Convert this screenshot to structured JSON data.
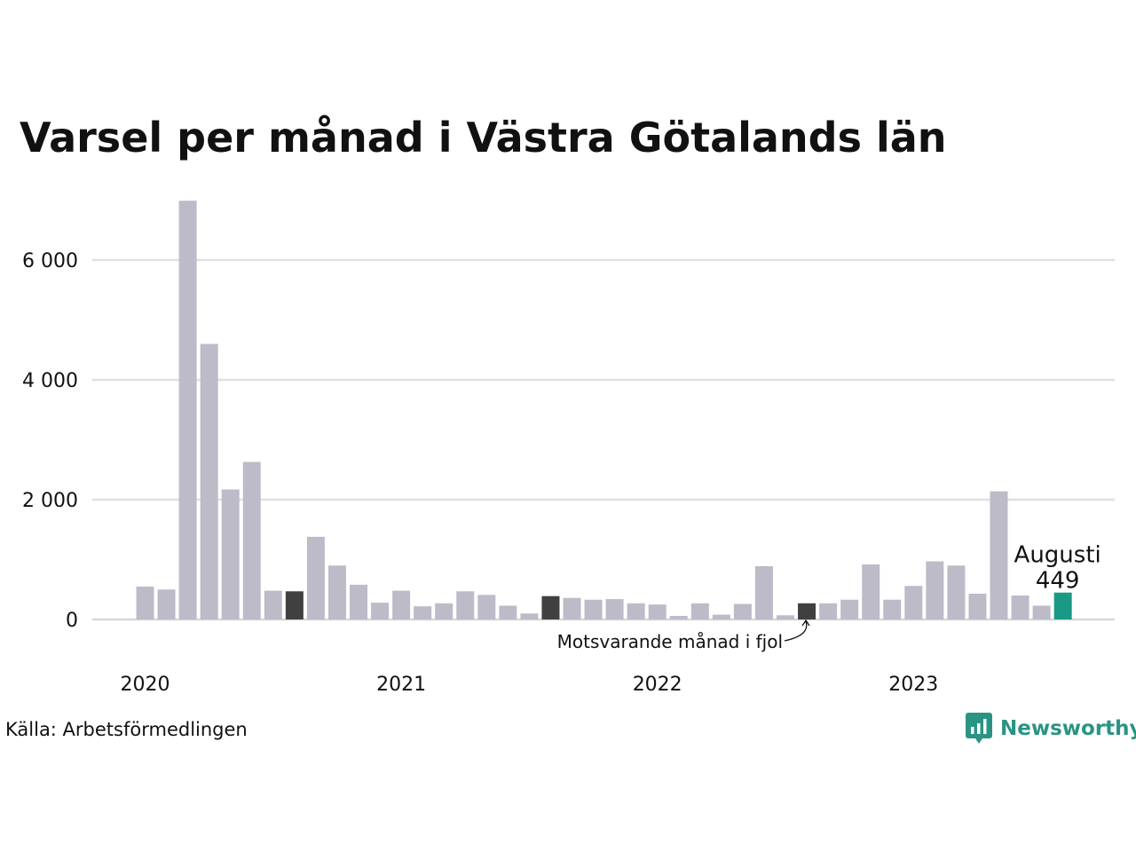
{
  "chart_data": {
    "type": "bar",
    "title": "Varsel per månad i Västra Götalands län",
    "xlabel": "",
    "ylabel": "",
    "ylim": [
      0,
      7000
    ],
    "y_ticks": [
      0,
      2000,
      4000,
      6000
    ],
    "y_tick_labels": [
      "0",
      "2 000",
      "4 000",
      "6 000"
    ],
    "x_tick_labels": [
      {
        "label": "2020",
        "month": "2020-01"
      },
      {
        "label": "2021",
        "month": "2021-01"
      },
      {
        "label": "2022",
        "month": "2022-01"
      },
      {
        "label": "2023",
        "month": "2023-01"
      }
    ],
    "months": [
      "2020-01",
      "2020-02",
      "2020-03",
      "2020-04",
      "2020-05",
      "2020-06",
      "2020-07",
      "2020-08",
      "2020-09",
      "2020-10",
      "2020-11",
      "2020-12",
      "2021-01",
      "2021-02",
      "2021-03",
      "2021-04",
      "2021-05",
      "2021-06",
      "2021-07",
      "2021-08",
      "2021-09",
      "2021-10",
      "2021-11",
      "2021-12",
      "2022-01",
      "2022-02",
      "2022-03",
      "2022-04",
      "2022-05",
      "2022-06",
      "2022-07",
      "2022-08",
      "2022-09",
      "2022-10",
      "2022-11",
      "2022-12",
      "2023-01",
      "2023-02",
      "2023-03",
      "2023-04",
      "2023-05",
      "2023-06",
      "2023-07",
      "2023-08"
    ],
    "values": [
      550,
      500,
      6990,
      4600,
      2170,
      2630,
      480,
      470,
      1380,
      900,
      580,
      280,
      480,
      220,
      270,
      470,
      410,
      230,
      100,
      390,
      360,
      330,
      340,
      270,
      250,
      60,
      270,
      80,
      260,
      890,
      70,
      270,
      270,
      330,
      920,
      330,
      560,
      970,
      900,
      430,
      2140,
      400,
      230,
      449
    ],
    "grid": true,
    "colors": {
      "default": "#bdbbc8",
      "same_month_previous_years": "#404040",
      "highlight": "#1a9985",
      "grid": "#e0e0e0",
      "axis": "#d8d8d8"
    },
    "same_month_previous_years": [
      "2020-08",
      "2021-08",
      "2022-08"
    ],
    "highlight": {
      "month": "2023-08",
      "label": "Augusti",
      "value_label": "449"
    },
    "annotation": {
      "text": "Motsvarande månad i fjol",
      "month": "2022-08"
    }
  },
  "source": "Källa: Arbetsförmedlingen",
  "brand": {
    "name": "Newsworthy",
    "color": "#2a9484",
    "icon": "newsworthy-logo-icon"
  }
}
